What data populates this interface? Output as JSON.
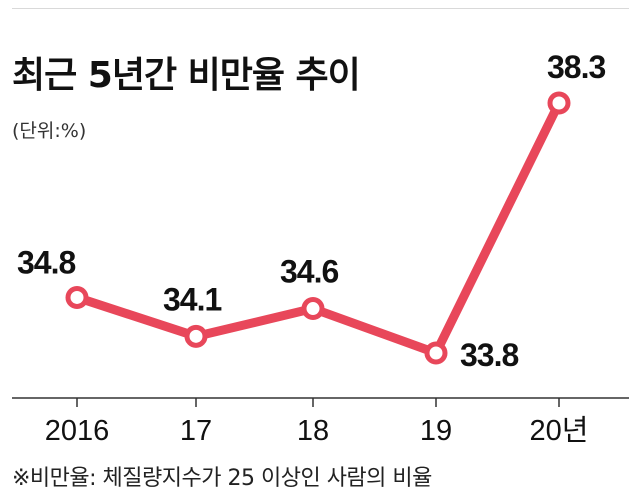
{
  "chart_data": {
    "type": "line",
    "title": "최근 5년간 비만율 추이",
    "unit_label": "(단위:%)",
    "categories": [
      "2016",
      "17",
      "18",
      "19",
      "20년"
    ],
    "series": [
      {
        "values": [
          34.8,
          34.1,
          34.6,
          33.8,
          38.3
        ]
      }
    ],
    "value_labels": [
      "34.8",
      "34.1",
      "34.6",
      "33.8",
      "38.3"
    ],
    "ylim": [
      33.5,
      38.5
    ],
    "grid": false,
    "line_color": "#e8475a",
    "footnote": "※비만율: 체질량지수가 25 이상인 사람의 비율"
  }
}
